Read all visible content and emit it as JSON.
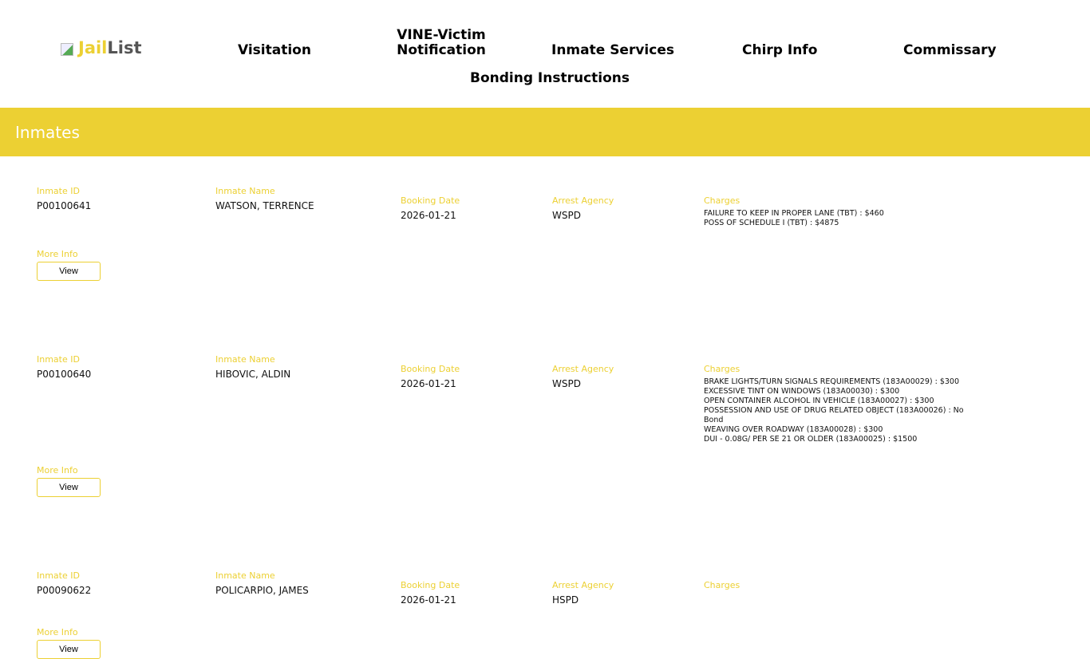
{
  "logo": {
    "part1": "Jail",
    "part2": "List"
  },
  "nav": [
    "Visitation",
    "VINE-Victim Notification",
    "Inmate Services",
    "Chirp Info",
    "Commissary",
    "Bonding Instructions"
  ],
  "banner": "Inmates",
  "labels": {
    "id": "Inmate ID",
    "name": "Inmate Name",
    "booking": "Booking Date",
    "agency": "Arrest Agency",
    "charges": "Charges",
    "more": "More Info",
    "view": "View"
  },
  "inmates": [
    {
      "id": "P00100641",
      "name": "WATSON, TERRENCE",
      "booking": "2026-01-21",
      "agency": "WSPD",
      "charges": [
        "FAILURE TO KEEP IN PROPER LANE (TBT) : $460",
        "POSS OF SCHEDULE I (TBT) : $4875"
      ]
    },
    {
      "id": "P00100640",
      "name": "HIBOVIC, ALDIN",
      "booking": "2026-01-21",
      "agency": "WSPD",
      "charges": [
        "BRAKE LIGHTS/TURN SIGNALS REQUIREMENTS (183A00029) : $300",
        "EXCESSIVE TINT ON WINDOWS (183A00030) : $300",
        "OPEN CONTAINER ALCOHOL IN VEHICLE (183A00027) : $300",
        "POSSESSION AND USE OF DRUG RELATED OBJECT (183A00026) : No Bond",
        "WEAVING OVER ROADWAY (183A00028) : $300",
        "DUI - 0.08G/ PER SE 21 OR OLDER (183A00025) : $1500"
      ]
    },
    {
      "id": "P00090622",
      "name": "POLICARPIO, JAMES",
      "booking": "2026-01-21",
      "agency": "HSPD",
      "charges": []
    }
  ]
}
